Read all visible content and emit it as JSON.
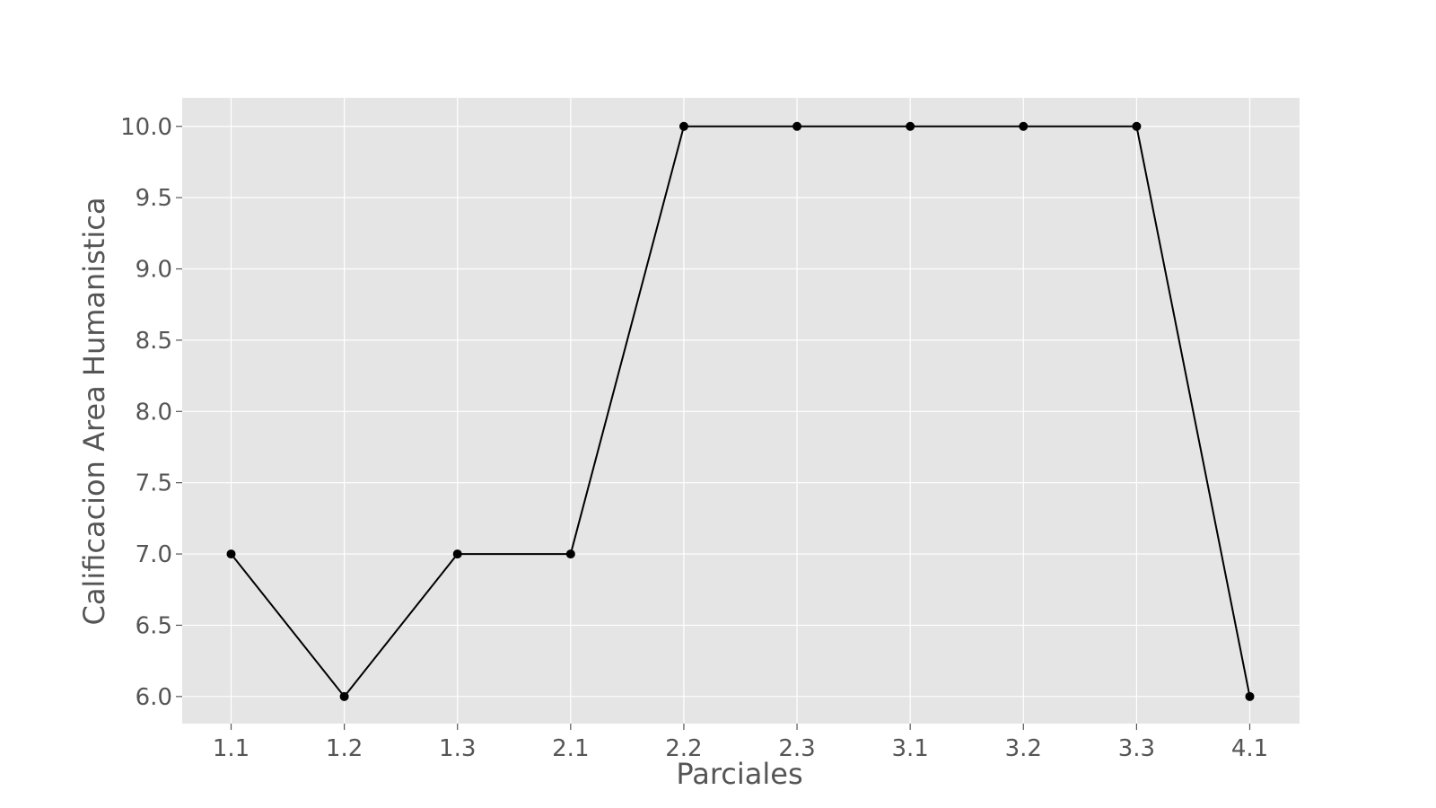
{
  "chart_data": {
    "type": "line",
    "title": "",
    "xlabel": "Parciales",
    "ylabel": "Calificacion Area Humanistica",
    "categories": [
      "1.1",
      "1.2",
      "1.3",
      "2.1",
      "2.2",
      "2.3",
      "3.1",
      "3.2",
      "3.3",
      "4.1"
    ],
    "series": [
      {
        "values": [
          7.0,
          6.0,
          7.0,
          7.0,
          10.0,
          10.0,
          10.0,
          10.0,
          10.0,
          6.0
        ]
      }
    ],
    "yticks": [
      "6.0",
      "6.5",
      "7.0",
      "7.5",
      "8.0",
      "8.5",
      "9.0",
      "9.5",
      "10.0"
    ],
    "ylim": [
      5.81,
      10.2
    ],
    "grid": true,
    "colors": {
      "plot_background": "#e5e5e5",
      "grid": "#ffffff",
      "line": "#000000",
      "text": "#555555"
    }
  }
}
